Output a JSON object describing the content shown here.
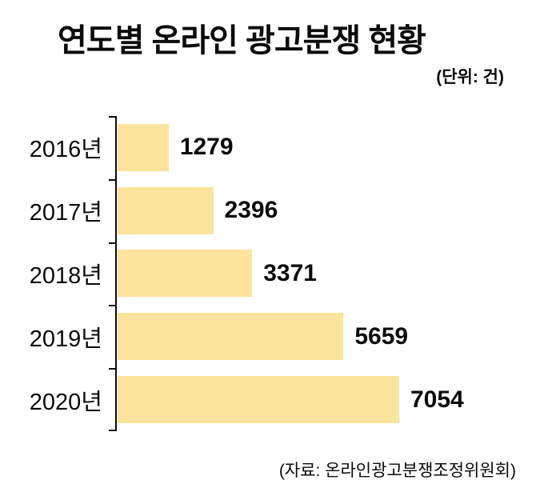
{
  "title": "연도별 온라인 광고분쟁 현황",
  "unit_label": "(단위: 건)",
  "source_label": "(자료: 온라인광고분쟁조정위원회)",
  "colors": {
    "bar": "#FCE49C",
    "text": "#0B0B0B",
    "axis": "#0B0B0B",
    "background": "#FFFFFF"
  },
  "chart_data": {
    "type": "bar",
    "orientation": "horizontal",
    "title": "연도별 온라인 광고분쟁 현황",
    "unit": "건",
    "categories": [
      "2016년",
      "2017년",
      "2018년",
      "2019년",
      "2020년"
    ],
    "values": [
      1279,
      2396,
      3371,
      5659,
      7054
    ],
    "xlabel": "",
    "ylabel": "",
    "xlim": [
      0,
      7054
    ],
    "grid": false,
    "legend": false,
    "value_labels": true,
    "source": "온라인광고분쟁조정위원회"
  }
}
